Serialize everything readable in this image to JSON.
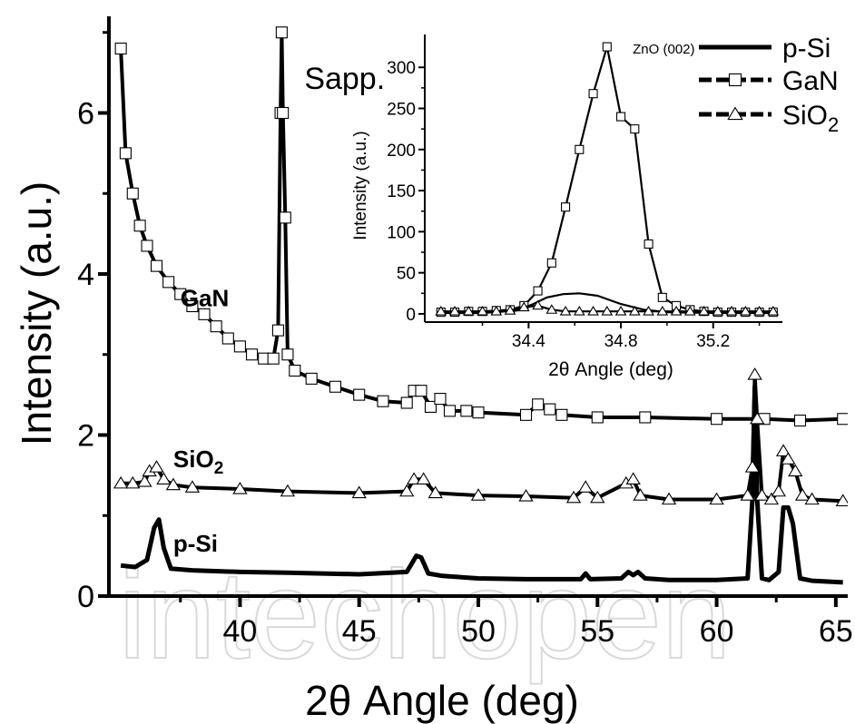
{
  "watermark": "intechopen",
  "chart_data": [
    {
      "type": "line",
      "xlabel": "2θ Angle (deg)",
      "ylabel": "Intensity (a.u.)",
      "xlim": [
        34.5,
        65.5
      ],
      "ylim": [
        0,
        7.2
      ],
      "xticks": [
        "40",
        "45",
        "50",
        "55",
        "60",
        "65"
      ],
      "yticks": [
        "0",
        "2",
        "4",
        "6"
      ],
      "grid": false,
      "legend_position": "top-right",
      "legend": [
        "p-Si",
        "GaN",
        "SiO₂"
      ],
      "annotations": [
        {
          "text": "Sapp.",
          "x": 42.7,
          "y": 6.3
        },
        {
          "text": "GaN",
          "x": 37.5,
          "y": 3.6
        },
        {
          "text": "SiO₂",
          "x": 37.2,
          "y": 1.6
        },
        {
          "text": "p-Si",
          "x": 37.2,
          "y": 0.55
        }
      ],
      "series": [
        {
          "name": "p-Si",
          "marker": "none",
          "x": [
            35.0,
            35.6,
            36.1,
            36.4,
            36.6,
            36.8,
            37.1,
            38,
            40,
            42,
            45,
            47.0,
            47.4,
            47.6,
            47.9,
            48.5,
            50,
            52,
            54.3,
            54.5,
            54.7,
            56,
            56.3,
            56.5,
            56.7,
            57,
            58,
            60,
            61.3,
            61.5,
            61.6,
            61.7,
            61.9,
            62.2,
            62.6,
            62.8,
            63.0,
            63.2,
            63.5,
            64,
            65.3
          ],
          "y": [
            0.38,
            0.36,
            0.45,
            0.85,
            0.95,
            0.6,
            0.34,
            0.32,
            0.3,
            0.29,
            0.27,
            0.3,
            0.5,
            0.48,
            0.28,
            0.25,
            0.22,
            0.21,
            0.21,
            0.28,
            0.21,
            0.22,
            0.3,
            0.26,
            0.3,
            0.22,
            0.2,
            0.2,
            0.22,
            1.2,
            2.6,
            1.2,
            0.22,
            0.2,
            0.3,
            1.1,
            1.1,
            0.9,
            0.22,
            0.19,
            0.17
          ]
        },
        {
          "name": "GaN",
          "marker": "square",
          "x": [
            35.0,
            35.2,
            35.5,
            35.8,
            36.1,
            36.5,
            37,
            37.5,
            38,
            38.5,
            39,
            39.5,
            40,
            40.5,
            41,
            41.4,
            41.6,
            41.7,
            41.75,
            41.8,
            41.9,
            42.0,
            42.3,
            43,
            44,
            45,
            46,
            47,
            47.3,
            47.6,
            48,
            48.4,
            48.8,
            49.5,
            50,
            52,
            52.5,
            53,
            53.5,
            55,
            57,
            60,
            62,
            63.5,
            65.3
          ],
          "y": [
            6.8,
            5.5,
            5.0,
            4.6,
            4.35,
            4.1,
            3.9,
            3.75,
            3.6,
            3.5,
            3.35,
            3.2,
            3.1,
            3.0,
            2.95,
            2.95,
            3.3,
            6.0,
            7.0,
            6.0,
            4.7,
            3.0,
            2.8,
            2.7,
            2.6,
            2.5,
            2.42,
            2.4,
            2.55,
            2.55,
            2.35,
            2.45,
            2.3,
            2.3,
            2.28,
            2.25,
            2.38,
            2.32,
            2.25,
            2.22,
            2.22,
            2.2,
            2.2,
            2.18,
            2.2
          ]
        },
        {
          "name": "SiO₂",
          "marker": "triangle",
          "x": [
            35.0,
            35.5,
            36.0,
            36.2,
            36.5,
            36.8,
            37.2,
            38,
            40,
            42,
            45,
            47.0,
            47.3,
            47.7,
            48.2,
            50,
            52,
            54,
            54.5,
            55,
            56.2,
            56.5,
            56.8,
            58,
            60,
            61.3,
            61.5,
            61.6,
            61.7,
            61.9,
            62.3,
            62.6,
            62.8,
            63.0,
            63.3,
            63.6,
            64,
            65.3
          ],
          "y": [
            1.4,
            1.4,
            1.42,
            1.55,
            1.6,
            1.45,
            1.38,
            1.35,
            1.33,
            1.3,
            1.28,
            1.3,
            1.45,
            1.45,
            1.28,
            1.25,
            1.24,
            1.22,
            1.35,
            1.22,
            1.4,
            1.45,
            1.25,
            1.2,
            1.2,
            1.25,
            1.6,
            2.75,
            2.2,
            1.25,
            1.2,
            1.3,
            1.8,
            1.7,
            1.55,
            1.25,
            1.2,
            1.18
          ]
        }
      ]
    },
    {
      "type": "line",
      "xlabel": "2θ Angle (deg)",
      "ylabel": "Intensity (a.u.)",
      "xlim": [
        33.95,
        35.5
      ],
      "ylim": [
        -10,
        340
      ],
      "xticks": [
        "34.4",
        "34.8",
        "35.2"
      ],
      "yticks": [
        "0",
        "50",
        "100",
        "150",
        "200",
        "250",
        "300"
      ],
      "annotations": [
        {
          "text": "ZnO (002)",
          "x": 34.82,
          "y": 310
        }
      ],
      "series": [
        {
          "name": "GaN",
          "marker": "square",
          "x": [
            34.02,
            34.08,
            34.14,
            34.2,
            34.26,
            34.32,
            34.38,
            34.44,
            34.5,
            34.56,
            34.62,
            34.68,
            34.74,
            34.8,
            34.86,
            34.92,
            34.98,
            35.04,
            35.1,
            35.16,
            35.22,
            35.28,
            35.34,
            35.4,
            35.46
          ],
          "y": [
            2,
            2,
            3,
            3,
            4,
            5,
            10,
            28,
            62,
            130,
            200,
            268,
            325,
            240,
            225,
            85,
            20,
            10,
            5,
            3,
            2,
            2,
            2,
            2,
            2
          ]
        },
        {
          "name": "p-Si",
          "marker": "none",
          "x": [
            34.02,
            34.2,
            34.35,
            34.42,
            34.48,
            34.55,
            34.62,
            34.7,
            34.8,
            34.9,
            35.0,
            35.2,
            35.46
          ],
          "y": [
            1,
            1,
            4,
            12,
            20,
            24,
            25,
            22,
            12,
            5,
            2,
            1,
            1
          ]
        },
        {
          "name": "SiO₂",
          "marker": "triangle",
          "x": [
            34.02,
            34.08,
            34.14,
            34.2,
            34.26,
            34.32,
            34.38,
            34.44,
            34.5,
            34.56,
            34.62,
            34.68,
            34.74,
            34.8,
            34.86,
            34.92,
            34.98,
            35.04,
            35.1,
            35.16,
            35.22,
            35.28,
            35.34,
            35.4,
            35.46
          ],
          "y": [
            3,
            3,
            3,
            3,
            3,
            4,
            8,
            10,
            5,
            3,
            3,
            3,
            3,
            3,
            3,
            3,
            3,
            3,
            3,
            3,
            3,
            3,
            3,
            3,
            3
          ]
        }
      ]
    }
  ]
}
